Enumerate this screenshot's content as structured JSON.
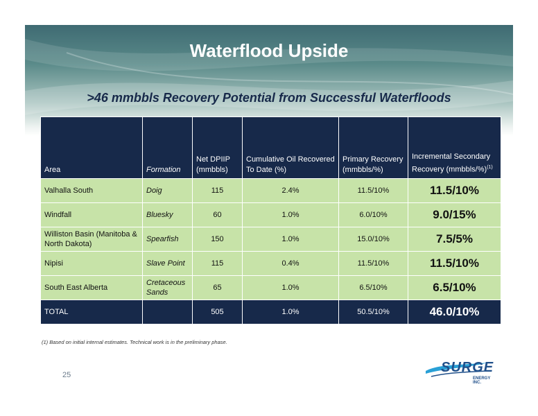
{
  "slide": {
    "title": "Waterflood Upside",
    "subtitle": ">46 mmbbls Recovery Potential from Successful Waterfloods",
    "page_number": "25",
    "footnote": "(1)  Based on initial internal estimates.  Technical work is in the preliminary phase."
  },
  "table": {
    "headers": {
      "area": "Area",
      "formation": "Formation",
      "net_dpiip": "Net DPIIP (mmbbls)",
      "cumulative": "Cumulative Oil Recovered To Date (%)",
      "primary": "Primary Recovery (mmbbls/%)",
      "incremental": "Incremental Secondary Recovery (mmbbls/%)",
      "incremental_note": "(1)"
    },
    "rows": [
      {
        "area": "Valhalla South",
        "formation": "Doig",
        "net_dpiip": "115",
        "cumulative": "2.4%",
        "primary": "11.5/10%",
        "incremental": "11.5/10%"
      },
      {
        "area": "Windfall",
        "formation": "Bluesky",
        "net_dpiip": "60",
        "cumulative": "1.0%",
        "primary": "6.0/10%",
        "incremental": "9.0/15%"
      },
      {
        "area": "Williston Basin (Manitoba & North Dakota)",
        "formation": "Spearfish",
        "net_dpiip": "150",
        "cumulative": "1.0%",
        "primary": "15.0/10%",
        "incremental": "7.5/5%"
      },
      {
        "area": "Nipisi",
        "formation": "Slave Point",
        "net_dpiip": "115",
        "cumulative": "0.4%",
        "primary": "11.5/10%",
        "incremental": "11.5/10%"
      },
      {
        "area": "South East Alberta",
        "formation": "Cretaceous Sands",
        "net_dpiip": "65",
        "cumulative": "1.0%",
        "primary": "6.5/10%",
        "incremental": "6.5/10%"
      }
    ],
    "total": {
      "area": "TOTAL",
      "formation": "",
      "net_dpiip": "505",
      "cumulative": "1.0%",
      "primary": "50.5/10%",
      "incremental": "46.0/10%"
    }
  },
  "logo": {
    "text": "SURGE",
    "sub": "ENERGY INC."
  },
  "colors": {
    "navy": "#17294a",
    "green": "#c7e3a8",
    "logo_blue": "#1f4f8a"
  }
}
